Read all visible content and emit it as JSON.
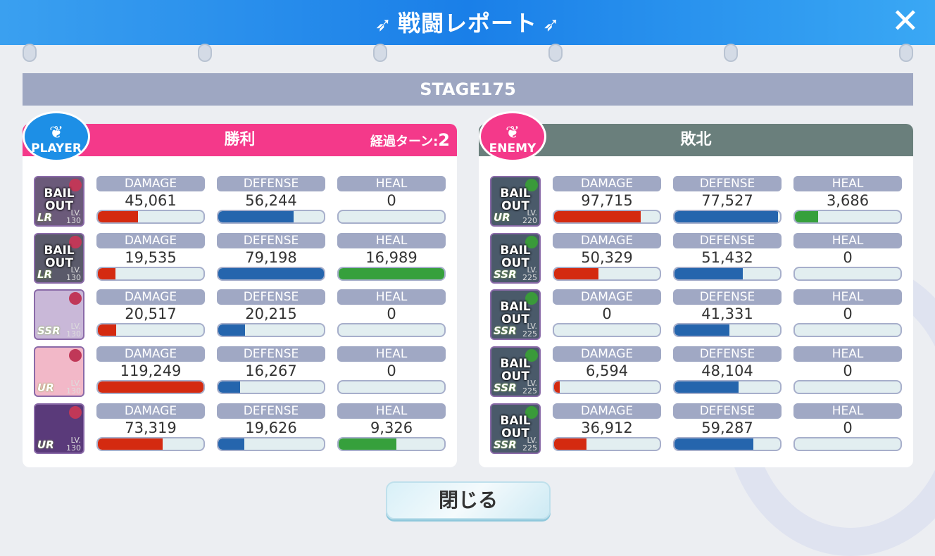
{
  "header": {
    "title": "戦闘レポート",
    "close_icon": "close-icon"
  },
  "stage": "STAGE175",
  "columns": [
    "DAMAGE",
    "DEFENSE",
    "HEAL"
  ],
  "colors": {
    "damage": "#d42a10",
    "defense": "#2565ad",
    "heal": "#36a03c",
    "player": "#f4398a",
    "enemy": "#6a7f7c"
  },
  "player": {
    "badge": "PLAYER",
    "result": "勝利",
    "turn_label": "経過ターン:",
    "turn_value": "2",
    "units": [
      {
        "portrait": "BAIL OUT",
        "rarity": "LR",
        "level": "130",
        "damage": 45061,
        "defense": 56244,
        "heal": 0
      },
      {
        "portrait": "BAIL OUT",
        "rarity": "LR",
        "level": "130",
        "damage": 19535,
        "defense": 79198,
        "heal": 16989
      },
      {
        "portrait": "",
        "rarity": "SSR",
        "level": "130",
        "damage": 20517,
        "defense": 20215,
        "heal": 0
      },
      {
        "portrait": "",
        "rarity": "UR",
        "level": "130",
        "damage": 119249,
        "defense": 16267,
        "heal": 0
      },
      {
        "portrait": "",
        "rarity": "UR",
        "level": "130",
        "damage": 73319,
        "defense": 19626,
        "heal": 9326
      }
    ]
  },
  "enemy": {
    "badge": "ENEMY",
    "result": "敗北",
    "units": [
      {
        "portrait": "BAIL OUT",
        "rarity": "UR",
        "level": "220",
        "damage": 97715,
        "defense": 77527,
        "heal": 3686
      },
      {
        "portrait": "BAIL OUT",
        "rarity": "SSR",
        "level": "225",
        "damage": 50329,
        "defense": 51432,
        "heal": 0
      },
      {
        "portrait": "BAIL OUT",
        "rarity": "SSR",
        "level": "225",
        "damage": 0,
        "defense": 41331,
        "heal": 0
      },
      {
        "portrait": "BAIL OUT",
        "rarity": "SSR",
        "level": "225",
        "damage": 6594,
        "defense": 48104,
        "heal": 0
      },
      {
        "portrait": "BAIL OUT",
        "rarity": "SSR",
        "level": "225",
        "damage": 36912,
        "defense": 59287,
        "heal": 0
      }
    ]
  },
  "lv_label": "LV.",
  "close_button": "閉じる"
}
